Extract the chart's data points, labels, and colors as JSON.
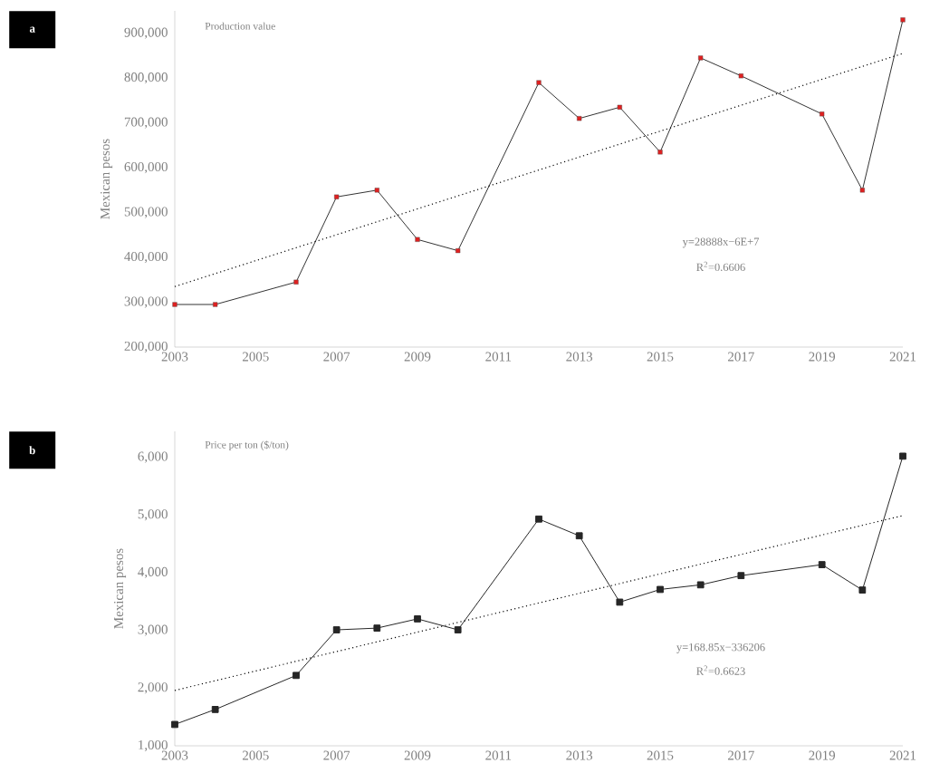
{
  "chart_data": [
    {
      "type": "line",
      "subtitle": "Production value",
      "ylabel": "Mexican pesos",
      "xlim": [
        2003,
        2021
      ],
      "xticks": [
        2003,
        2005,
        2007,
        2009,
        2011,
        2013,
        2015,
        2017,
        2019,
        2021
      ],
      "ylim": [
        200000,
        950000
      ],
      "yticks": [
        {
          "value": 200000,
          "label": "200,000"
        },
        {
          "value": 300000,
          "label": "300,000"
        },
        {
          "value": 400000,
          "label": "400,000"
        },
        {
          "value": 500000,
          "label": "500,000"
        },
        {
          "value": 600000,
          "label": "600,000"
        },
        {
          "value": 700000,
          "label": "700,000"
        },
        {
          "value": 800000,
          "label": "800,000"
        },
        {
          "value": 900000,
          "label": "900,000"
        }
      ],
      "marker": "square",
      "annotations": [
        "a",
        "y=28888x−6E+7",
        "R$^{2}$=0.6606"
      ],
      "series": [
        {
          "color": "#333333",
          "x": [
            2003,
            2004,
            2006,
            2007,
            2008,
            2009,
            2010,
            2012,
            2013,
            2014,
            2015,
            2016,
            2017,
            2019,
            2020,
            2021
          ],
          "values": [
            295000,
            295000,
            345000,
            535000,
            550000,
            440000,
            415000,
            790000,
            710000,
            735000,
            635000,
            845000,
            805000,
            720000,
            550000,
            930000
          ],
          "colors": [
            "#e02020",
            "#e02020",
            "#e02020",
            "#e02020",
            "#e02020",
            "#e02020",
            "#e02020",
            "#e02020",
            "#e02020",
            "#e02020",
            "#e02020",
            "#e02020",
            "#e02020",
            "#e02020",
            "#e02020",
            "#e02020"
          ]
        },
        {
          "type": "line",
          "color": "#000000",
          "line_style": "dotted",
          "marker": "none",
          "x": [
            2003,
            2021
          ],
          "values": [
            335000,
            855000
          ]
        }
      ]
    },
    {
      "type": "line",
      "subtitle": "Price per ton ($/ton)",
      "ylabel": "Mexican pesos",
      "xlim": [
        2003,
        2021
      ],
      "xticks": [
        2003,
        2005,
        2007,
        2009,
        2011,
        2013,
        2015,
        2017,
        2019,
        2021
      ],
      "ylim": [
        1000,
        6450
      ],
      "yticks": [
        {
          "value": 1000,
          "label": "1,000"
        },
        {
          "value": 2000,
          "label": "2,000"
        },
        {
          "value": 3000,
          "label": "3,000"
        },
        {
          "value": 4000,
          "label": "4,000"
        },
        {
          "value": 5000,
          "label": "5,000"
        },
        {
          "value": 6000,
          "label": "6,000"
        }
      ],
      "marker": "square",
      "annotations": [
        "b",
        "y=168.85x−336206",
        "R$^{2}$=0.6623"
      ],
      "series": [
        {
          "color": "#262626",
          "x": [
            2003,
            2004,
            2006,
            2007,
            2008,
            2009,
            2010,
            2012,
            2013,
            2014,
            2015,
            2016,
            2017,
            2019,
            2020,
            2021
          ],
          "values": [
            1370,
            1630,
            2220,
            3010,
            3040,
            3200,
            3010,
            4930,
            4640,
            3490,
            3710,
            3790,
            3950,
            4140,
            3700,
            6020
          ]
        },
        {
          "type": "line",
          "color": "#000000",
          "line_style": "dotted",
          "marker": "none",
          "x": [
            2003,
            2021
          ],
          "values": [
            1960,
            4990
          ]
        }
      ]
    }
  ]
}
